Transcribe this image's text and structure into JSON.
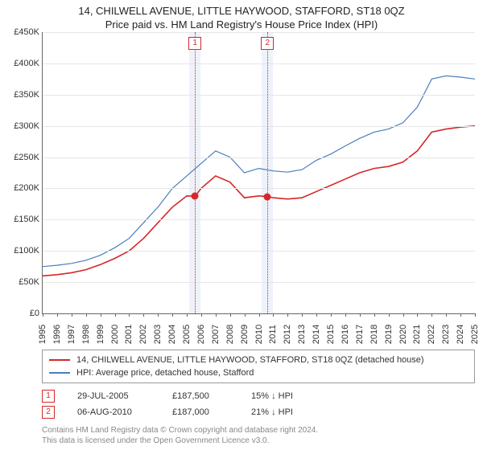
{
  "title_main": "14, CHILWELL AVENUE, LITTLE HAYWOOD, STAFFORD, ST18 0QZ",
  "title_sub": "Price paid vs. HM Land Registry's House Price Index (HPI)",
  "chart": {
    "type": "line",
    "background_color": "#ffffff",
    "grid_color": "#e6e6e6",
    "axis_color": "#666666",
    "xlim": [
      1995,
      2025
    ],
    "ylim": [
      0,
      450000
    ],
    "ytick_step": 50000,
    "yticks": [
      "£0",
      "£50K",
      "£100K",
      "£150K",
      "£200K",
      "£250K",
      "£300K",
      "£350K",
      "£400K",
      "£450K"
    ],
    "xticks": [
      1995,
      1996,
      1997,
      1998,
      1999,
      2000,
      2001,
      2002,
      2003,
      2004,
      2005,
      2006,
      2007,
      2008,
      2009,
      2010,
      2011,
      2012,
      2013,
      2014,
      2015,
      2016,
      2017,
      2018,
      2019,
      2020,
      2021,
      2022,
      2023,
      2024,
      2025
    ],
    "label_fontsize": 11,
    "marker_band_color": "#eef2fa",
    "marker_line_color": "#d62728",
    "series": [
      {
        "name": "property",
        "label": "14, CHILWELL AVENUE, LITTLE HAYWOOD, STAFFORD, ST18 0QZ (detached house)",
        "color": "#d62728",
        "line_width": 1.6,
        "data": [
          [
            1995,
            60000
          ],
          [
            1996,
            62000
          ],
          [
            1997,
            65000
          ],
          [
            1998,
            70000
          ],
          [
            1999,
            78000
          ],
          [
            2000,
            88000
          ],
          [
            2001,
            100000
          ],
          [
            2002,
            120000
          ],
          [
            2003,
            145000
          ],
          [
            2004,
            170000
          ],
          [
            2005,
            188000
          ],
          [
            2005.57,
            187500
          ],
          [
            2006,
            200000
          ],
          [
            2007,
            220000
          ],
          [
            2008,
            210000
          ],
          [
            2009,
            185000
          ],
          [
            2010,
            188000
          ],
          [
            2010.6,
            187000
          ],
          [
            2011,
            185000
          ],
          [
            2012,
            183000
          ],
          [
            2013,
            185000
          ],
          [
            2014,
            195000
          ],
          [
            2015,
            205000
          ],
          [
            2016,
            215000
          ],
          [
            2017,
            225000
          ],
          [
            2018,
            232000
          ],
          [
            2019,
            235000
          ],
          [
            2020,
            242000
          ],
          [
            2021,
            260000
          ],
          [
            2022,
            290000
          ],
          [
            2023,
            295000
          ],
          [
            2024,
            298000
          ],
          [
            2025,
            300000
          ]
        ]
      },
      {
        "name": "hpi",
        "label": "HPI: Average price, detached house, Stafford",
        "color": "#4a7ebb",
        "line_width": 1.2,
        "data": [
          [
            1995,
            75000
          ],
          [
            1996,
            77000
          ],
          [
            1997,
            80000
          ],
          [
            1998,
            85000
          ],
          [
            1999,
            93000
          ],
          [
            2000,
            105000
          ],
          [
            2001,
            120000
          ],
          [
            2002,
            145000
          ],
          [
            2003,
            170000
          ],
          [
            2004,
            200000
          ],
          [
            2005,
            220000
          ],
          [
            2006,
            240000
          ],
          [
            2007,
            260000
          ],
          [
            2008,
            250000
          ],
          [
            2009,
            225000
          ],
          [
            2010,
            232000
          ],
          [
            2011,
            228000
          ],
          [
            2012,
            226000
          ],
          [
            2013,
            230000
          ],
          [
            2014,
            245000
          ],
          [
            2015,
            255000
          ],
          [
            2016,
            268000
          ],
          [
            2017,
            280000
          ],
          [
            2018,
            290000
          ],
          [
            2019,
            295000
          ],
          [
            2020,
            305000
          ],
          [
            2021,
            330000
          ],
          [
            2022,
            375000
          ],
          [
            2023,
            380000
          ],
          [
            2024,
            378000
          ],
          [
            2025,
            375000
          ]
        ]
      }
    ],
    "sales_markers": [
      {
        "n": "1",
        "x": 2005.57,
        "y": 187500,
        "band_half_width": 0.4
      },
      {
        "n": "2",
        "x": 2010.6,
        "y": 187000,
        "band_half_width": 0.4
      }
    ]
  },
  "legend": {
    "items": [
      {
        "color": "#d62728",
        "label": "14, CHILWELL AVENUE, LITTLE HAYWOOD, STAFFORD, ST18 0QZ (detached house)"
      },
      {
        "color": "#4a7ebb",
        "label": "HPI: Average price, detached house, Stafford"
      }
    ]
  },
  "sales": [
    {
      "n": "1",
      "date": "29-JUL-2005",
      "price": "£187,500",
      "diff": "15% ↓ HPI"
    },
    {
      "n": "2",
      "date": "06-AUG-2010",
      "price": "£187,000",
      "diff": "21% ↓ HPI"
    }
  ],
  "credits_line1": "Contains HM Land Registry data © Crown copyright and database right 2024.",
  "credits_line2": "This data is licensed under the Open Government Licence v3.0."
}
